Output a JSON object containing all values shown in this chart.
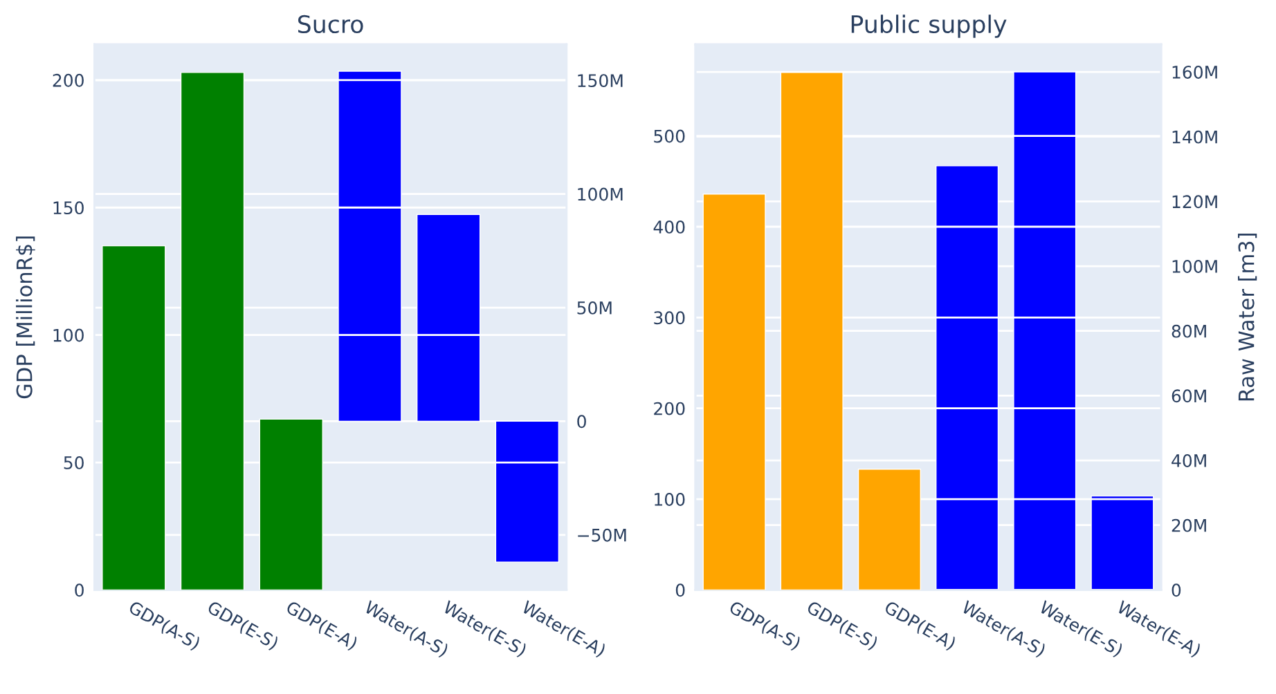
{
  "chart_data": [
    {
      "type": "bar",
      "title": "Sucro",
      "ylabel": "GDP [MillionR$]",
      "categories": [
        "GDP(A-S)",
        "GDP(E-S)",
        "GDP(E-A)",
        "Water(A-S)",
        "Water(E-S)",
        "Water(E-A)"
      ],
      "series": [
        {
          "color": "#008000",
          "values": [
            135,
            203,
            67,
            null,
            null,
            null
          ]
        },
        {
          "color": "#0000ff",
          "axis": "y2",
          "values": [
            null,
            null,
            null,
            154000000,
            91000000,
            -62000000
          ]
        }
      ],
      "ylim": [
        0,
        214
      ],
      "yticks": [
        0,
        50,
        100,
        150,
        200
      ],
      "y2lim": [
        -74200000,
        165800000
      ],
      "y2ticks": [
        {
          "value": -50000000,
          "label": "−50M"
        },
        {
          "value": 0,
          "label": "0"
        },
        {
          "value": 50000000,
          "label": "50M"
        },
        {
          "value": 100000000,
          "label": "100M"
        },
        {
          "value": 150000000,
          "label": "150M"
        }
      ],
      "grid": "y",
      "legend": false
    },
    {
      "type": "bar",
      "title": "Public supply",
      "y2label": "Raw Water [m3]",
      "categories": [
        "GDP(A-S)",
        "GDP(E-S)",
        "GDP(E-A)",
        "Water(A-S)",
        "Water(E-S)",
        "Water(E-A)"
      ],
      "series": [
        {
          "color": "#ffa500",
          "values": [
            436,
            570,
            133,
            null,
            null,
            null
          ]
        },
        {
          "color": "#0000ff",
          "axis": "y2",
          "values": [
            null,
            null,
            null,
            131000000,
            160000000,
            29000000
          ]
        }
      ],
      "ylim": [
        0,
        600.8
      ],
      "yticks": [
        0,
        100,
        200,
        300,
        400,
        500
      ],
      "y2lim": [
        0,
        168500000
      ],
      "y2ticks": [
        {
          "value": 0,
          "label": "0"
        },
        {
          "value": 20000000,
          "label": "20M"
        },
        {
          "value": 40000000,
          "label": "40M"
        },
        {
          "value": 60000000,
          "label": "60M"
        },
        {
          "value": 80000000,
          "label": "80M"
        },
        {
          "value": 100000000,
          "label": "100M"
        },
        {
          "value": 120000000,
          "label": "120M"
        },
        {
          "value": 140000000,
          "label": "140M"
        },
        {
          "value": 160000000,
          "label": "160M"
        }
      ],
      "grid": "y",
      "legend": false
    }
  ]
}
